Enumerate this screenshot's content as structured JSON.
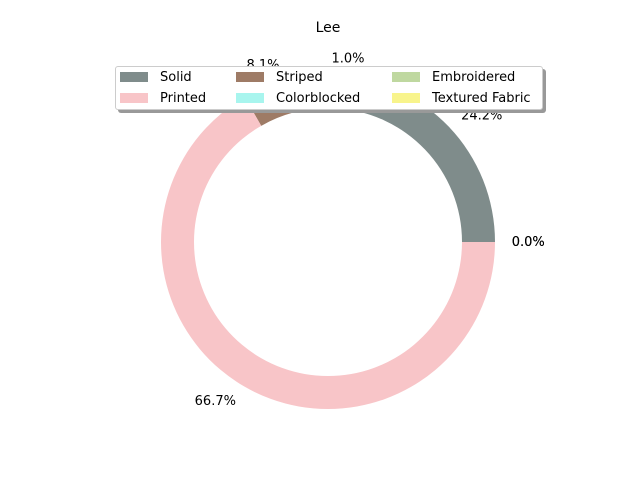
{
  "chart_data": {
    "type": "pie",
    "title": "Lee",
    "donut": true,
    "start_angle_deg": 0,
    "legend_position": "top-center",
    "legend_columns": 3,
    "slices": [
      {
        "label": "Solid",
        "value": 24.2,
        "pct_label": "24.2%",
        "color": "#7f8c8b"
      },
      {
        "label": "Colorblocked",
        "value": 1.0,
        "pct_label": "1.0%",
        "color": "#a8f5ee"
      },
      {
        "label": "Striped",
        "value": 8.1,
        "pct_label": "8.1%",
        "color": "#9e7b66"
      },
      {
        "label": "Printed",
        "value": 66.7,
        "pct_label": "66.7%",
        "color": "#f8c5c8"
      },
      {
        "label": "Embroidered",
        "value": 0.0,
        "pct_label": "0.0%",
        "color": "#bfd8a0"
      },
      {
        "label": "Textured Fabric",
        "value": 0.0,
        "pct_label": "0.0%",
        "color": "#f8f48c"
      }
    ],
    "legend": [
      "Solid",
      "Striped",
      "Embroidered",
      "Printed",
      "Colorblocked",
      "Textured Fabric"
    ]
  }
}
